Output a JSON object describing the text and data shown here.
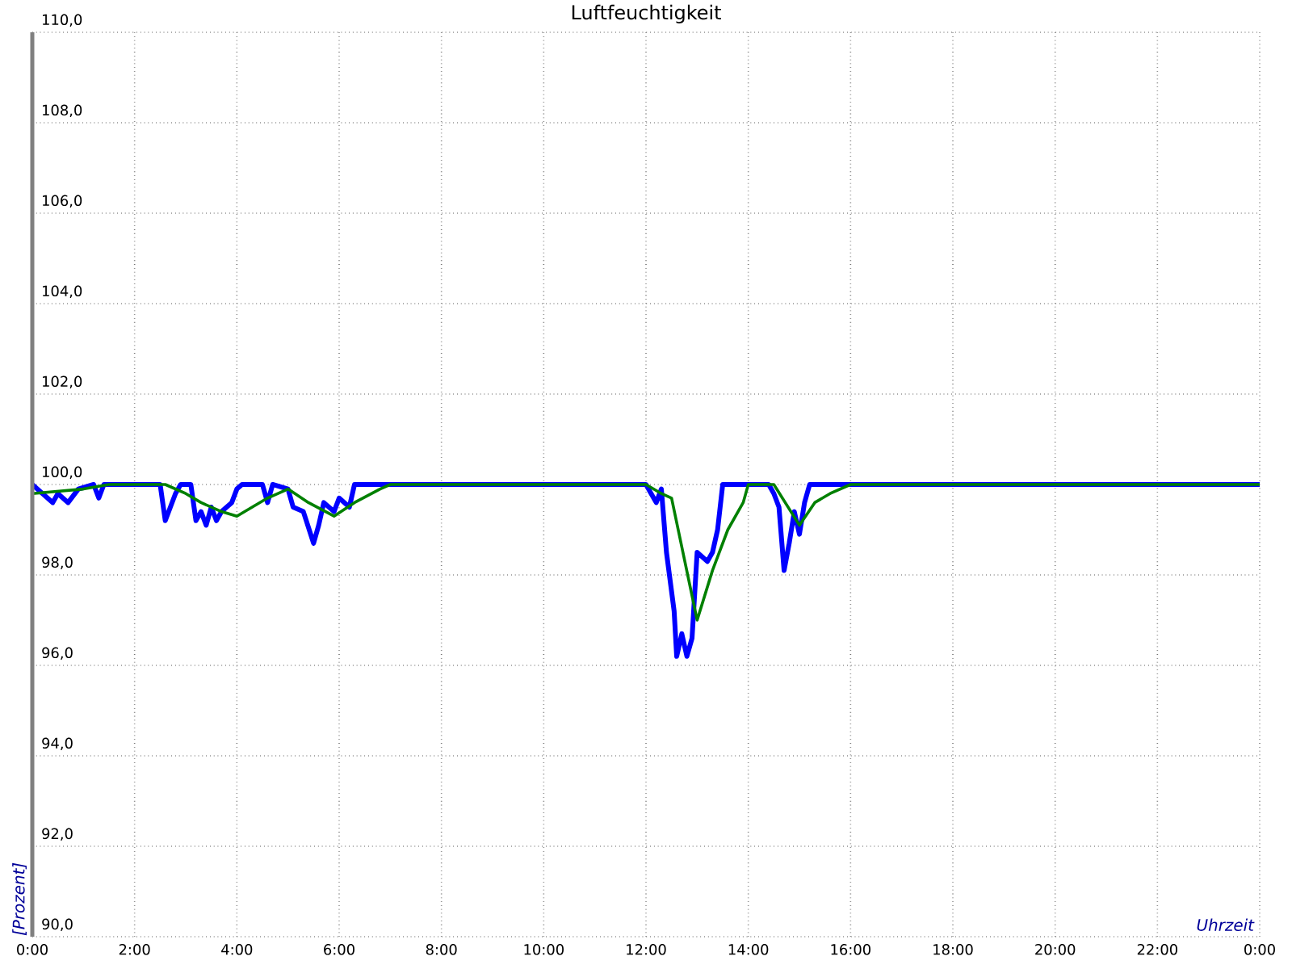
{
  "chart_data": {
    "type": "line",
    "title": "Luftfeuchtigkeit",
    "xlabel": "Uhrzeit",
    "ylabel": "[Prozent]",
    "xlim": [
      0,
      24
    ],
    "ylim": [
      90,
      110
    ],
    "xticks": [
      {
        "value": 0,
        "label": "0:00"
      },
      {
        "value": 2,
        "label": "2:00"
      },
      {
        "value": 4,
        "label": "4:00"
      },
      {
        "value": 6,
        "label": "6:00"
      },
      {
        "value": 8,
        "label": "8:00"
      },
      {
        "value": 10,
        "label": "10:00"
      },
      {
        "value": 12,
        "label": "12:00"
      },
      {
        "value": 14,
        "label": "14:00"
      },
      {
        "value": 16,
        "label": "16:00"
      },
      {
        "value": 18,
        "label": "18:00"
      },
      {
        "value": 20,
        "label": "20:00"
      },
      {
        "value": 22,
        "label": "22:00"
      },
      {
        "value": 24,
        "label": "0:00"
      }
    ],
    "yticks": [
      {
        "value": 90,
        "label": "90,0"
      },
      {
        "value": 92,
        "label": "92,0"
      },
      {
        "value": 94,
        "label": "94,0"
      },
      {
        "value": 96,
        "label": "96,0"
      },
      {
        "value": 98,
        "label": "98,0"
      },
      {
        "value": 100,
        "label": "100,0"
      },
      {
        "value": 102,
        "label": "102,0"
      },
      {
        "value": 104,
        "label": "104,0"
      },
      {
        "value": 106,
        "label": "106,0"
      },
      {
        "value": 108,
        "label": "108,0"
      },
      {
        "value": 110,
        "label": "110,0"
      }
    ],
    "grid": true,
    "line_style": "solid",
    "series": [
      {
        "color": "#0000ff",
        "x": [
          0,
          0.2,
          0.4,
          0.5,
          0.7,
          0.9,
          1.2,
          1.3,
          1.4,
          2.5,
          2.6,
          2.7,
          2.8,
          2.9,
          3.1,
          3.2,
          3.3,
          3.4,
          3.5,
          3.6,
          3.7,
          3.9,
          4.0,
          4.1,
          4.5,
          4.6,
          4.7,
          5.0,
          5.1,
          5.3,
          5.5,
          5.6,
          5.7,
          5.9,
          6.0,
          6.2,
          6.3,
          12.0,
          12.1,
          12.2,
          12.3,
          12.4,
          12.55,
          12.6,
          12.7,
          12.8,
          12.9,
          13.0,
          13.2,
          13.3,
          13.4,
          13.5,
          14.4,
          14.5,
          14.6,
          14.7,
          14.8,
          14.9,
          15.0,
          15.1,
          15.2,
          24
        ],
        "values": [
          100,
          99.8,
          99.6,
          99.8,
          99.6,
          99.9,
          100,
          99.7,
          100,
          100,
          99.2,
          99.5,
          99.8,
          100,
          100,
          99.2,
          99.4,
          99.1,
          99.5,
          99.2,
          99.4,
          99.6,
          99.9,
          100,
          100,
          99.6,
          100,
          99.9,
          99.5,
          99.4,
          98.7,
          99.1,
          99.6,
          99.4,
          99.7,
          99.5,
          100,
          100,
          99.8,
          99.6,
          99.9,
          98.5,
          97.2,
          96.2,
          96.7,
          96.2,
          96.6,
          98.5,
          98.3,
          98.5,
          99.0,
          100,
          100,
          99.8,
          99.5,
          98.1,
          98.7,
          99.4,
          98.9,
          99.6,
          100,
          100
        ]
      },
      {
        "color": "#008000",
        "x": [
          0,
          1.0,
          1.5,
          2.6,
          3.0,
          3.3,
          3.7,
          4.0,
          4.3,
          4.6,
          5.0,
          5.4,
          5.9,
          6.3,
          6.8,
          7.0,
          12.0,
          12.3,
          12.5,
          13.0,
          13.3,
          13.6,
          13.9,
          14.0,
          14.5,
          15.0,
          15.3,
          15.6,
          16.0,
          24
        ],
        "values": [
          99.8,
          99.9,
          100,
          100,
          99.8,
          99.6,
          99.4,
          99.3,
          99.5,
          99.7,
          99.9,
          99.6,
          99.3,
          99.6,
          99.9,
          100,
          100,
          99.8,
          99.7,
          97.0,
          98.1,
          99.0,
          99.6,
          100,
          100,
          99.1,
          99.6,
          99.8,
          100,
          100
        ]
      }
    ]
  }
}
